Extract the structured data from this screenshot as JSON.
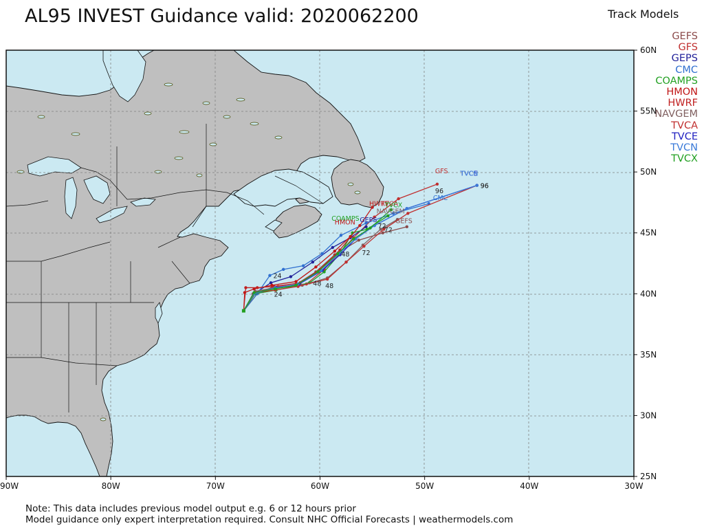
{
  "title": "AL95 INVEST Guidance valid: 2020062200",
  "legend": {
    "title": "Track Models",
    "items": [
      {
        "name": "GEFS",
        "color": "#8b4a4a"
      },
      {
        "name": "GFS",
        "color": "#c03030"
      },
      {
        "name": "GEPS",
        "color": "#22229a"
      },
      {
        "name": "CMC",
        "color": "#3070d0"
      },
      {
        "name": "COAMPS",
        "color": "#22a022"
      },
      {
        "name": "HMON",
        "color": "#c01515"
      },
      {
        "name": "HWRF",
        "color": "#c02020"
      },
      {
        "name": "NAVGEM",
        "color": "#806060"
      },
      {
        "name": "TVCA",
        "color": "#c03030"
      },
      {
        "name": "TVCE",
        "color": "#2020c0"
      },
      {
        "name": "TVCN",
        "color": "#3a7ad8"
      },
      {
        "name": "TVCX",
        "color": "#22a022"
      }
    ]
  },
  "footer": {
    "line1": "Note: This data includes previous model output e.g. 6 or 12 hours prior",
    "line2": "Model guidance only expert interpretation required. Consult NHC Official Forecasts | weathermodels.com"
  },
  "axes": {
    "lon_ticks": [
      "90W",
      "80W",
      "70W",
      "60W",
      "50W",
      "40W",
      "30W"
    ],
    "lat_ticks": [
      "25N",
      "30N",
      "35N",
      "40N",
      "45N",
      "50N",
      "55N",
      "60N"
    ],
    "lon_range": [
      -90,
      -30
    ],
    "lat_range": [
      25,
      60
    ]
  },
  "colors": {
    "ocean": "#cbe9f2",
    "land": "#bfbfbf",
    "lakes": "#cbe9f2"
  },
  "chart_data": {
    "type": "map-tracks",
    "origin": [
      -67.3,
      38.6
    ],
    "tracks": [
      {
        "name": "GEFS",
        "label": "GEFS",
        "color": "#8b4a4a",
        "points": [
          [
            -67.3,
            38.6
          ],
          [
            -66.4,
            40.0
          ],
          [
            -64.6,
            40.5
          ],
          [
            -62.4,
            40.7
          ],
          [
            -60.4,
            41.8
          ],
          [
            -58.6,
            43.2
          ],
          [
            -56.3,
            44.4
          ],
          [
            -54.0,
            45.0
          ],
          [
            -51.7,
            45.5
          ]
        ]
      },
      {
        "name": "GFS",
        "label": "GFS",
        "color": "#c03030",
        "points": [
          [
            -67.3,
            38.6
          ],
          [
            -66.0,
            40.0
          ],
          [
            -64.0,
            40.6
          ],
          [
            -61.3,
            40.8
          ],
          [
            -59.6,
            42.0
          ],
          [
            -58.0,
            43.5
          ],
          [
            -56.8,
            44.6
          ],
          [
            -54.8,
            46.3
          ],
          [
            -52.5,
            47.8
          ],
          [
            -48.8,
            49.0
          ]
        ],
        "hour_labels": [
          {
            "h": "96",
            "at": [
              -48.8,
              49.0
            ],
            "pos": "below"
          }
        ]
      },
      {
        "name": "GEPS",
        "label": "GEPS",
        "color": "#22229a",
        "points": [
          [
            -67.3,
            38.6
          ],
          [
            -66.3,
            40.0
          ],
          [
            -64.7,
            40.9
          ],
          [
            -62.8,
            41.4
          ],
          [
            -60.7,
            42.6
          ],
          [
            -58.8,
            43.8
          ],
          [
            -57.1,
            44.6
          ],
          [
            -55.6,
            45.5
          ]
        ]
      },
      {
        "name": "CMC",
        "label": "CMC",
        "color": "#3070d0",
        "points": [
          [
            -67.3,
            38.6
          ],
          [
            -66.0,
            40.0
          ],
          [
            -64.8,
            41.5
          ],
          [
            -63.5,
            42.0
          ],
          [
            -61.6,
            42.3
          ],
          [
            -59.8,
            43.3
          ],
          [
            -58.0,
            44.8
          ],
          [
            -55.6,
            45.8
          ],
          [
            -53.0,
            46.6
          ],
          [
            -49.6,
            47.4
          ]
        ],
        "hour_labels": [
          {
            "h": "24",
            "at": [
              -64.8,
              41.5
            ],
            "pos": "right"
          }
        ]
      },
      {
        "name": "COAMPS",
        "label": "COAMPS",
        "color": "#22a022",
        "points": [
          [
            -67.3,
            38.6
          ],
          [
            -66.2,
            40.0
          ],
          [
            -64.2,
            40.3
          ],
          [
            -61.0,
            40.9
          ],
          [
            -59.6,
            41.8
          ],
          [
            -58.0,
            43.4
          ],
          [
            -56.9,
            45.0
          ],
          [
            -55.5,
            45.3
          ],
          [
            -53.5,
            46.4
          ]
        ],
        "hour_labels": [
          {
            "h": "48",
            "at": [
              -61.0,
              40.9
            ],
            "pos": "right"
          }
        ]
      },
      {
        "name": "HMON",
        "label": "HMON",
        "color": "#c01515",
        "points": [
          [
            -67.3,
            38.6
          ],
          [
            -67.2,
            40.1
          ],
          [
            -66.3,
            40.4
          ],
          [
            -64.6,
            40.7
          ],
          [
            -62.3,
            41.0
          ],
          [
            -60.4,
            42.2
          ],
          [
            -58.6,
            43.5
          ],
          [
            -57.1,
            44.7
          ]
        ]
      },
      {
        "name": "HWRF",
        "label": "HWRF",
        "color": "#c02020",
        "points": [
          [
            -67.3,
            38.6
          ],
          [
            -67.1,
            40.5
          ],
          [
            -66.0,
            40.5
          ],
          [
            -64.4,
            40.6
          ],
          [
            -61.9,
            40.9
          ],
          [
            -60.0,
            42.0
          ],
          [
            -58.1,
            43.6
          ],
          [
            -56.2,
            45.6
          ],
          [
            -55.0,
            47.1
          ]
        ]
      },
      {
        "name": "NAVGEM",
        "label": "NAVGEM",
        "color": "#806060",
        "points": [
          [
            -67.3,
            38.6
          ],
          [
            -66.2,
            40.2
          ],
          [
            -64.3,
            40.5
          ],
          [
            -61.7,
            40.7
          ],
          [
            -59.3,
            41.3
          ],
          [
            -57.5,
            42.6
          ],
          [
            -55.9,
            44.0
          ],
          [
            -54.2,
            45.3
          ],
          [
            -52.6,
            46.1
          ]
        ],
        "hour_labels": [
          {
            "h": "72",
            "at": [
              -54.2,
              45.3
            ],
            "pos": "right"
          }
        ]
      },
      {
        "name": "TVCA",
        "label": "TVCA",
        "color": "#c03030",
        "points": [
          [
            -67.3,
            38.6
          ],
          [
            -66.2,
            40.1
          ],
          [
            -64.3,
            40.3
          ],
          [
            -62.1,
            40.6
          ],
          [
            -59.3,
            41.2
          ],
          [
            -57.5,
            42.6
          ],
          [
            -55.8,
            43.9
          ],
          [
            -53.9,
            45.3
          ],
          [
            -51.6,
            46.6
          ],
          [
            -45.0,
            48.9
          ]
        ],
        "hour_labels": [
          {
            "h": "72",
            "at": [
              -55.8,
              43.9
            ],
            "pos": "below"
          },
          {
            "h": "48",
            "at": [
              -59.3,
              41.2
            ],
            "pos": "below"
          }
        ]
      },
      {
        "name": "TVCE",
        "label": "TVCE",
        "color": "#2020c0",
        "points": [
          [
            -67.3,
            38.6
          ],
          [
            -66.3,
            40.0
          ],
          [
            -64.2,
            40.5
          ],
          [
            -62.0,
            40.8
          ],
          [
            -59.8,
            41.9
          ],
          [
            -58.1,
            43.2
          ],
          [
            -56.6,
            44.5
          ],
          [
            -54.8,
            45.6
          ],
          [
            -51.7,
            47.0
          ],
          [
            -45.0,
            48.9
          ]
        ],
        "hour_labels": [
          {
            "h": "96",
            "at": [
              -45.0,
              48.9
            ],
            "pos": "right"
          },
          {
            "h": "24",
            "at": [
              -64.2,
              40.5
            ],
            "pos": "below"
          }
        ]
      },
      {
        "name": "TVCN",
        "label": "TVCN",
        "color": "#3a7ad8",
        "points": [
          [
            -67.3,
            38.6
          ],
          [
            -66.3,
            40.0
          ],
          [
            -64.3,
            40.5
          ],
          [
            -62.1,
            40.8
          ],
          [
            -59.9,
            41.9
          ],
          [
            -58.2,
            43.3
          ],
          [
            -56.6,
            44.5
          ],
          [
            -54.8,
            45.6
          ],
          [
            -51.7,
            47.0
          ],
          [
            -45.0,
            48.9
          ]
        ],
        "hour_labels": [
          {
            "h": "96",
            "at": [
              -45.0,
              48.9
            ],
            "pos": "right"
          },
          {
            "h": "72",
            "at": [
              -54.8,
              45.6
            ],
            "pos": "right"
          }
        ]
      },
      {
        "name": "TVCX",
        "label": "TVCX",
        "color": "#22a022",
        "points": [
          [
            -67.3,
            38.6
          ],
          [
            -66.3,
            40.1
          ],
          [
            -64.3,
            40.4
          ],
          [
            -62.3,
            40.7
          ],
          [
            -60.2,
            41.8
          ],
          [
            -58.3,
            43.3
          ],
          [
            -56.8,
            44.5
          ],
          [
            -55.2,
            45.4
          ],
          [
            -53.2,
            46.9
          ]
        ],
        "hour_labels": [
          {
            "h": "48",
            "at": [
              -58.3,
              43.3
            ],
            "pos": "right"
          }
        ]
      }
    ],
    "track_label_positions": {
      "GEFS": [
        -52.8,
        45.8
      ],
      "GFS": [
        -49.0,
        49.9
      ],
      "GEPS": [
        -56.2,
        45.9
      ],
      "CMC": [
        -49.2,
        47.7
      ],
      "COAMPS": [
        -58.9,
        46.0
      ],
      "HMON": [
        -58.6,
        45.7
      ],
      "HWRF": [
        -55.3,
        47.2
      ],
      "NAVGEM": [
        -54.6,
        46.6
      ],
      "TVCA": [
        -54.2,
        47.2
      ],
      "TVCE": [
        -46.6,
        49.7
      ],
      "TVCN": [
        -46.6,
        49.7
      ],
      "TVCX": [
        -53.8,
        47.1
      ]
    }
  }
}
